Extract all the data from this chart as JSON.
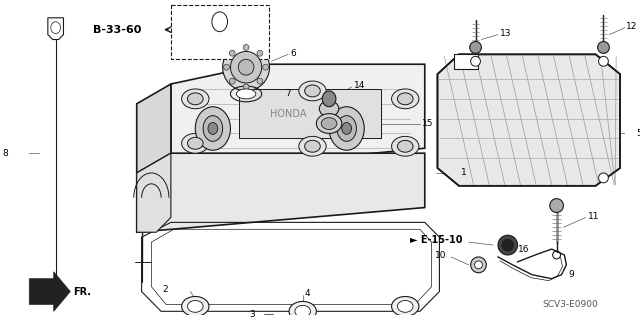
{
  "bg_color": "#ffffff",
  "fig_width": 6.4,
  "fig_height": 3.19,
  "dpi": 100,
  "parts_label": "SCV3-E0900",
  "ref_label": "B-33-60",
  "e_label": "E-15-10",
  "fr_label": "FR.",
  "line_color": "#1a1a1a",
  "gray_color": "#888888",
  "dark_color": "#333333"
}
